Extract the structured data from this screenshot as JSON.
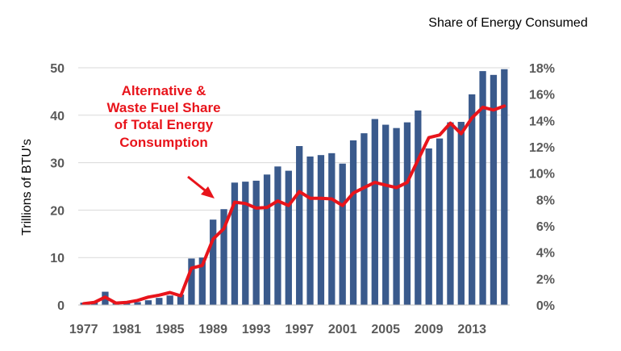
{
  "chart_data": {
    "type": "bar",
    "x": [
      1977,
      1978,
      1979,
      1980,
      1981,
      1982,
      1983,
      1984,
      1985,
      1986,
      1987,
      1988,
      1989,
      1990,
      1991,
      1992,
      1993,
      1994,
      1995,
      1996,
      1997,
      1998,
      1999,
      2000,
      2001,
      2002,
      2003,
      2004,
      2005,
      2006,
      2007,
      2008,
      2009,
      2010,
      2011,
      2012,
      2013,
      2014,
      2015,
      2016
    ],
    "x_tick_labels": [
      "1977",
      "1981",
      "1985",
      "1989",
      "1993",
      "1997",
      "2001",
      "2005",
      "2009",
      "2013"
    ],
    "series": [
      {
        "axis": "left",
        "type": "bar",
        "values": [
          0.5,
          0.6,
          2.8,
          0.4,
          0.5,
          0.6,
          1.0,
          1.5,
          2.0,
          2.2,
          9.8,
          10.0,
          18.0,
          20.2,
          25.8,
          26.0,
          26.2,
          27.5,
          29.2,
          28.3,
          33.5,
          31.3,
          31.6,
          32.0,
          29.8,
          34.7,
          36.2,
          39.2,
          38.0,
          37.3,
          38.5,
          41.0,
          33.0,
          35.1,
          38.5,
          38.6,
          44.4,
          49.3,
          48.5,
          49.7
        ]
      },
      {
        "axis": "right",
        "type": "line",
        "values": [
          0.1,
          0.2,
          0.6,
          0.15,
          0.2,
          0.35,
          0.6,
          0.75,
          0.95,
          0.7,
          2.8,
          3.0,
          5.0,
          5.8,
          7.8,
          7.7,
          7.35,
          7.4,
          7.9,
          7.55,
          8.6,
          8.1,
          8.1,
          8.05,
          7.55,
          8.5,
          8.9,
          9.3,
          9.1,
          8.9,
          9.3,
          11.0,
          12.7,
          12.9,
          13.8,
          13.0,
          14.2,
          15.0,
          14.8,
          15.1
        ]
      }
    ],
    "ylabel_left": "Trillions of BTU's",
    "ylabel_right": "Share of Energy Consumed",
    "ylim_left": [
      0,
      50
    ],
    "yticks_left": [
      "0",
      "10",
      "20",
      "30",
      "40",
      "50"
    ],
    "ylim_right": [
      0,
      18
    ],
    "yticks_right": [
      "0%",
      "2%",
      "4%",
      "6%",
      "8%",
      "10%",
      "12%",
      "14%",
      "16%",
      "18%"
    ],
    "annotation": [
      "Alternative &",
      "Waste Fuel Share",
      "of Total Energy",
      "Consumption"
    ],
    "grid": "horizontal",
    "colors": {
      "bar": "#3a5a8c",
      "line": "#e8141b",
      "grid": "#d9d9d9",
      "arrow": "#e8141b"
    }
  }
}
